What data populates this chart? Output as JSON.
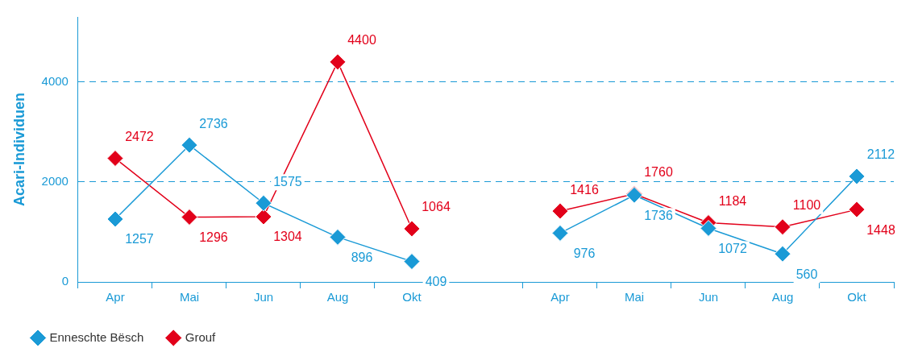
{
  "chart_data": {
    "type": "line",
    "ylabel": "Acari-Individuen",
    "categories": [
      "Apr",
      "Mai",
      "Jun",
      "Aug",
      "Okt",
      null,
      "Apr",
      "Mai",
      "Jun",
      "Aug",
      "Okt"
    ],
    "series": [
      {
        "name": "Enneschte Bësch",
        "color": "#1a9ad6",
        "values": [
          1257,
          2736,
          1575,
          896,
          409,
          null,
          976,
          1736,
          1072,
          560,
          2112
        ]
      },
      {
        "name": "Grouf",
        "color": "#e2001a",
        "values": [
          2472,
          1296,
          1304,
          4400,
          1064,
          null,
          1416,
          1760,
          1184,
          1100,
          1448
        ]
      }
    ],
    "ylim": [
      0,
      5300
    ],
    "yticks": [
      0,
      2000,
      4000
    ],
    "grid": "y",
    "legend": "bottom left",
    "marker": "diamond",
    "line_style": "solid",
    "data_labels": true
  }
}
